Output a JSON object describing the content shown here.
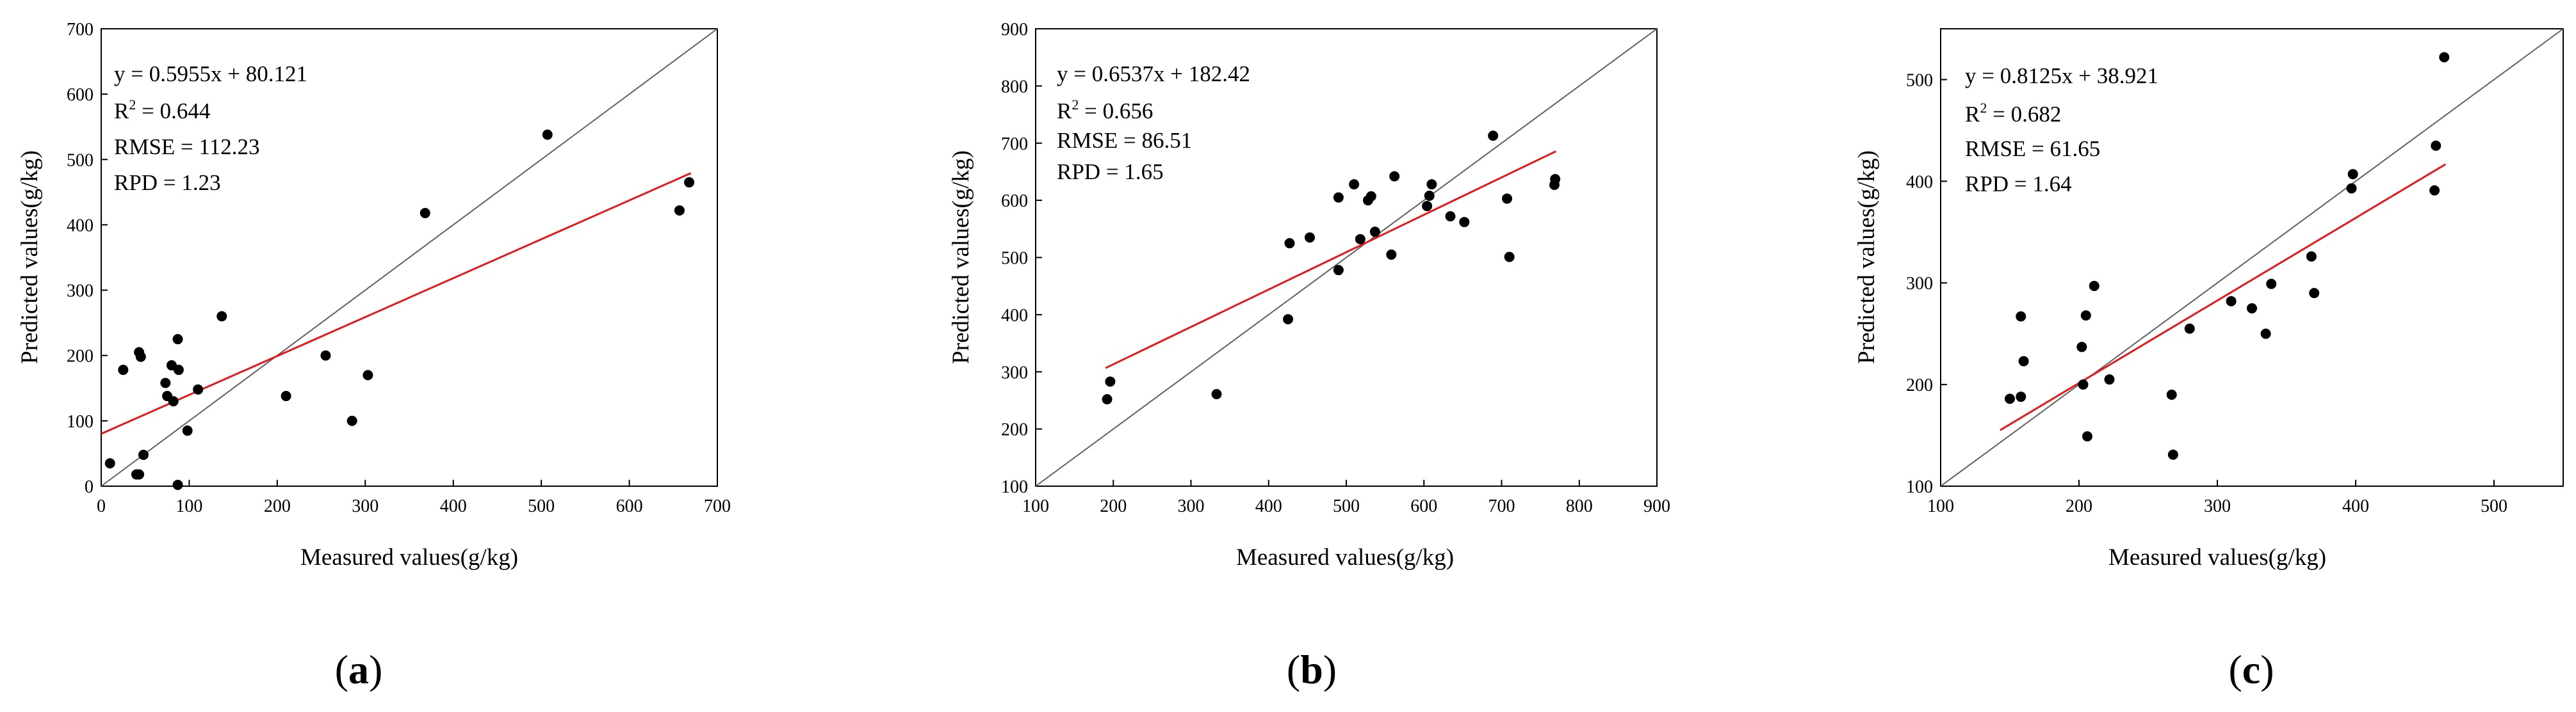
{
  "chart_data": [
    {
      "type": "scatter",
      "panel_label": "a",
      "xlabel": "Measured values(g/kg)",
      "ylabel": "Predicted values(g/kg)",
      "xlim": [
        0,
        700
      ],
      "ylim": [
        0,
        700
      ],
      "xticks": [
        0,
        100,
        200,
        300,
        400,
        500,
        600,
        700
      ],
      "yticks": [
        0,
        100,
        200,
        300,
        400,
        500,
        600,
        700
      ],
      "equation": "y = 0.5955x + 80.121",
      "r2_prefix": "R",
      "r2_sup": "2",
      "r2_value": " = 0.644",
      "rmse": "RMSE = 112.23",
      "rpd": "RPD = 1.23",
      "fit": {
        "slope": 0.5955,
        "intercept": 80.121,
        "x_range": [
          0,
          670
        ]
      },
      "reference_line": "1:1",
      "colors": {
        "points": "#000000",
        "fit": "#e31a1c",
        "reference": "#606060"
      },
      "points": [
        {
          "x": 10,
          "y": 35
        },
        {
          "x": 25,
          "y": 178
        },
        {
          "x": 40,
          "y": 18
        },
        {
          "x": 43,
          "y": 18
        },
        {
          "x": 43,
          "y": 205
        },
        {
          "x": 45,
          "y": 198
        },
        {
          "x": 48,
          "y": 48
        },
        {
          "x": 73,
          "y": 158
        },
        {
          "x": 75,
          "y": 138
        },
        {
          "x": 80,
          "y": 185
        },
        {
          "x": 82,
          "y": 130
        },
        {
          "x": 87,
          "y": 225
        },
        {
          "x": 88,
          "y": 178
        },
        {
          "x": 87,
          "y": 2
        },
        {
          "x": 98,
          "y": 85
        },
        {
          "x": 110,
          "y": 148
        },
        {
          "x": 137,
          "y": 260
        },
        {
          "x": 210,
          "y": 138
        },
        {
          "x": 255,
          "y": 200
        },
        {
          "x": 285,
          "y": 100
        },
        {
          "x": 303,
          "y": 170
        },
        {
          "x": 368,
          "y": 418
        },
        {
          "x": 507,
          "y": 538
        },
        {
          "x": 657,
          "y": 422
        },
        {
          "x": 668,
          "y": 465
        }
      ]
    },
    {
      "type": "scatter",
      "panel_label": "b",
      "xlabel": "Measured values(g/kg)",
      "ylabel": "Predicted values(g/kg)",
      "xlim": [
        100,
        900
      ],
      "ylim": [
        100,
        900
      ],
      "xticks": [
        100,
        200,
        300,
        400,
        500,
        600,
        700,
        800,
        900
      ],
      "yticks": [
        100,
        200,
        300,
        400,
        500,
        600,
        700,
        800,
        900
      ],
      "equation": "y = 0.6537x + 182.42",
      "r2_prefix": "R",
      "r2_sup": "2",
      "r2_value": " = 0.656",
      "rmse": "RMSE = 86.51",
      "rpd": "RPD = 1.65",
      "fit": {
        "slope": 0.6537,
        "intercept": 182.42,
        "x_range": [
          190,
          770
        ]
      },
      "reference_line": "1:1",
      "colors": {
        "points": "#000000",
        "fit": "#e31a1c",
        "reference": "#606060"
      },
      "points": [
        {
          "x": 192,
          "y": 252
        },
        {
          "x": 196,
          "y": 283
        },
        {
          "x": 333,
          "y": 261
        },
        {
          "x": 425,
          "y": 392
        },
        {
          "x": 427,
          "y": 525
        },
        {
          "x": 453,
          "y": 535
        },
        {
          "x": 490,
          "y": 478
        },
        {
          "x": 490,
          "y": 605
        },
        {
          "x": 510,
          "y": 628
        },
        {
          "x": 518,
          "y": 532
        },
        {
          "x": 528,
          "y": 600
        },
        {
          "x": 532,
          "y": 607
        },
        {
          "x": 537,
          "y": 545
        },
        {
          "x": 558,
          "y": 505
        },
        {
          "x": 562,
          "y": 642
        },
        {
          "x": 604,
          "y": 590
        },
        {
          "x": 607,
          "y": 608
        },
        {
          "x": 610,
          "y": 628
        },
        {
          "x": 634,
          "y": 572
        },
        {
          "x": 652,
          "y": 562
        },
        {
          "x": 689,
          "y": 713
        },
        {
          "x": 707,
          "y": 603
        },
        {
          "x": 710,
          "y": 501
        },
        {
          "x": 768,
          "y": 627
        },
        {
          "x": 769,
          "y": 637
        }
      ]
    },
    {
      "type": "scatter",
      "panel_label": "c",
      "xlabel": "Measured values(g/kg)",
      "ylabel": "Predicted values(g/kg)",
      "xlim": [
        100,
        550
      ],
      "ylim": [
        100,
        550
      ],
      "xticks": [
        100,
        200,
        300,
        400,
        500
      ],
      "yticks": [
        100,
        200,
        300,
        400,
        500
      ],
      "equation": "y = 0.8125x + 38.921",
      "r2_prefix": "R",
      "r2_sup": "2",
      "r2_value": " = 0.682",
      "rmse": "RMSE = 61.65",
      "rpd": "RPD = 1.64",
      "fit": {
        "slope": 0.8125,
        "intercept": 38.921,
        "x_range": [
          143,
          465
        ]
      },
      "reference_line": "1:1",
      "colors": {
        "points": "#000000",
        "fit": "#e31a1c",
        "reference": "#606060"
      },
      "points": [
        {
          "x": 150,
          "y": 186
        },
        {
          "x": 158,
          "y": 188
        },
        {
          "x": 158,
          "y": 267
        },
        {
          "x": 160,
          "y": 223
        },
        {
          "x": 202,
          "y": 237
        },
        {
          "x": 203,
          "y": 200
        },
        {
          "x": 205,
          "y": 268
        },
        {
          "x": 206,
          "y": 149
        },
        {
          "x": 211,
          "y": 297
        },
        {
          "x": 222,
          "y": 205
        },
        {
          "x": 267,
          "y": 190
        },
        {
          "x": 268,
          "y": 131
        },
        {
          "x": 280,
          "y": 255
        },
        {
          "x": 310,
          "y": 282
        },
        {
          "x": 325,
          "y": 275
        },
        {
          "x": 335,
          "y": 250
        },
        {
          "x": 339,
          "y": 299
        },
        {
          "x": 368,
          "y": 326
        },
        {
          "x": 370,
          "y": 290
        },
        {
          "x": 397,
          "y": 393
        },
        {
          "x": 398,
          "y": 407
        },
        {
          "x": 457,
          "y": 391
        },
        {
          "x": 458,
          "y": 435
        },
        {
          "x": 464,
          "y": 522
        }
      ]
    }
  ]
}
